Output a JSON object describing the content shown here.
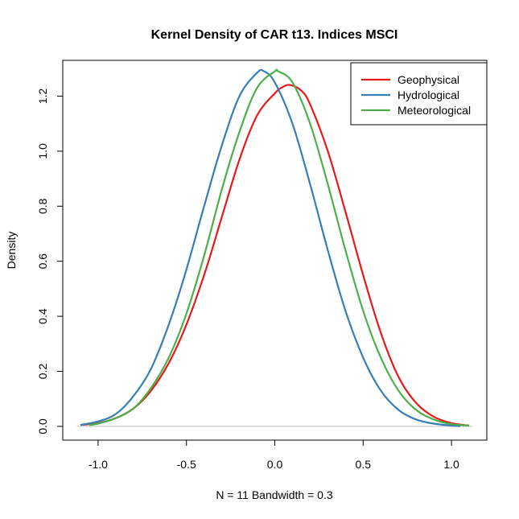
{
  "chart_data": {
    "type": "line",
    "title": "Kernel Density of CAR t13. Indices MSCI",
    "xlabel": "N = 11   Bandwidth = 0.3",
    "ylabel": "Density",
    "xlim": [
      -1.2,
      1.2
    ],
    "ylim": [
      -0.05,
      1.33
    ],
    "x_ticks": [
      -1.0,
      -0.5,
      0.0,
      0.5,
      1.0
    ],
    "x_tick_labels": [
      "-1.0",
      "-0.5",
      "0.0",
      "0.5",
      "1.0"
    ],
    "y_ticks": [
      0.0,
      0.2,
      0.4,
      0.6,
      0.8,
      1.0,
      1.2
    ],
    "y_tick_labels": [
      "0.0",
      "0.2",
      "0.4",
      "0.6",
      "0.8",
      "1.0",
      "1.2"
    ],
    "baseline": 0,
    "baseline_color": "#bebebe",
    "legend_position": "top-right",
    "series": [
      {
        "name": "Geophysical",
        "color": "#e41a1c",
        "x": [
          -1.1,
          -1.0,
          -0.9,
          -0.8,
          -0.7,
          -0.6,
          -0.5,
          -0.4,
          -0.3,
          -0.2,
          -0.1,
          0.0,
          0.05,
          0.09,
          0.15,
          0.2,
          0.3,
          0.4,
          0.5,
          0.6,
          0.7,
          0.8,
          0.9,
          1.0,
          1.1
        ],
        "y": [
          0.005,
          0.012,
          0.03,
          0.065,
          0.13,
          0.23,
          0.37,
          0.55,
          0.76,
          0.97,
          1.13,
          1.21,
          1.235,
          1.24,
          1.22,
          1.17,
          1.0,
          0.78,
          0.55,
          0.34,
          0.18,
          0.085,
          0.035,
          0.012,
          0.003
        ]
      },
      {
        "name": "Hydrological",
        "color": "#377eb8",
        "x": [
          -1.1,
          -1.0,
          -0.9,
          -0.8,
          -0.7,
          -0.6,
          -0.5,
          -0.4,
          -0.3,
          -0.2,
          -0.1,
          -0.06,
          0.0,
          0.1,
          0.2,
          0.3,
          0.4,
          0.5,
          0.6,
          0.7,
          0.8,
          0.9,
          1.0,
          1.05
        ],
        "y": [
          0.005,
          0.018,
          0.045,
          0.11,
          0.21,
          0.37,
          0.57,
          0.8,
          1.02,
          1.2,
          1.285,
          1.29,
          1.25,
          1.1,
          0.88,
          0.64,
          0.42,
          0.25,
          0.13,
          0.06,
          0.025,
          0.01,
          0.003,
          0.001
        ]
      },
      {
        "name": "Meteorological",
        "color": "#4daf4a",
        "x": [
          -1.05,
          -1.0,
          -0.9,
          -0.8,
          -0.7,
          -0.6,
          -0.5,
          -0.4,
          -0.3,
          -0.2,
          -0.1,
          0.0,
          0.02,
          0.1,
          0.2,
          0.3,
          0.4,
          0.5,
          0.6,
          0.7,
          0.8,
          0.9,
          1.0,
          1.1
        ],
        "y": [
          0.005,
          0.01,
          0.03,
          0.065,
          0.14,
          0.25,
          0.41,
          0.62,
          0.86,
          1.07,
          1.23,
          1.29,
          1.29,
          1.25,
          1.1,
          0.88,
          0.64,
          0.42,
          0.25,
          0.13,
          0.06,
          0.025,
          0.008,
          0.003
        ]
      }
    ]
  }
}
